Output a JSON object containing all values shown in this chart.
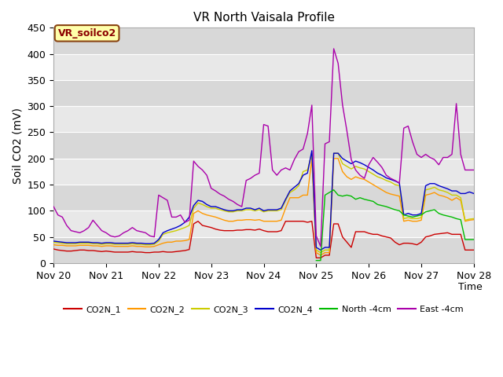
{
  "title": "VR North Vaisala Profile",
  "ylabel": "Soil CO2 (mV)",
  "xlabel": "Time",
  "annotation": "VR_soilco2",
  "ylim": [
    0,
    450
  ],
  "background_color": "#ffffff",
  "plot_bg_color": "#e8e8e8",
  "grid_color": "#ffffff",
  "band_color": "#d8d8d8",
  "series": {
    "CO2N_1": {
      "color": "#cc0000",
      "label": "CO2N_1"
    },
    "CO2N_2": {
      "color": "#ff9900",
      "label": "CO2N_2"
    },
    "CO2N_3": {
      "color": "#cccc00",
      "label": "CO2N_3"
    },
    "CO2N_4": {
      "color": "#0000cc",
      "label": "CO2N_4"
    },
    "North_4cm": {
      "color": "#00bb00",
      "label": "North -4cm"
    },
    "East_4cm": {
      "color": "#aa00aa",
      "label": "East -4cm"
    }
  },
  "xtick_labels": [
    "Nov 20",
    "Nov 21",
    "Nov 22",
    "Nov 23",
    "Nov 24",
    "Nov 25",
    "Nov 26",
    "Nov 27",
    "Nov 28"
  ],
  "xtick_positions": [
    0,
    24,
    48,
    72,
    96,
    120,
    144,
    168,
    192
  ],
  "ytick_values": [
    0,
    50,
    100,
    150,
    200,
    250,
    300,
    350,
    400,
    450
  ],
  "time_points": [
    0,
    2,
    4,
    6,
    8,
    10,
    12,
    14,
    16,
    18,
    20,
    22,
    24,
    26,
    28,
    30,
    32,
    34,
    36,
    38,
    40,
    42,
    44,
    46,
    48,
    50,
    52,
    54,
    56,
    58,
    60,
    62,
    64,
    66,
    68,
    70,
    72,
    74,
    76,
    78,
    80,
    82,
    84,
    86,
    88,
    90,
    92,
    94,
    96,
    98,
    100,
    102,
    104,
    106,
    108,
    110,
    112,
    114,
    116,
    118,
    120,
    122,
    124,
    126,
    128,
    130,
    132,
    134,
    136,
    138,
    140,
    142,
    144,
    146,
    148,
    150,
    152,
    154,
    156,
    158,
    160,
    162,
    164,
    166,
    168,
    170,
    172,
    174,
    176,
    178,
    180,
    182,
    184,
    186,
    188,
    190,
    192
  ],
  "CO2N_1": [
    27,
    25,
    24,
    23,
    23,
    24,
    25,
    25,
    24,
    24,
    23,
    22,
    23,
    22,
    21,
    21,
    21,
    21,
    22,
    21,
    21,
    20,
    20,
    21,
    21,
    22,
    21,
    21,
    22,
    23,
    24,
    26,
    75,
    80,
    72,
    70,
    68,
    65,
    63,
    62,
    62,
    62,
    63,
    63,
    64,
    64,
    63,
    65,
    62,
    60,
    60,
    60,
    62,
    80,
    80,
    80,
    80,
    80,
    78,
    80,
    10,
    10,
    15,
    15,
    75,
    75,
    50,
    40,
    30,
    60,
    60,
    60,
    57,
    55,
    55,
    52,
    50,
    48,
    40,
    35,
    38,
    38,
    37,
    35,
    40,
    50,
    52,
    55,
    56,
    57,
    58,
    55,
    55,
    55,
    25,
    25,
    25
  ],
  "CO2N_2": [
    35,
    34,
    34,
    33,
    33,
    33,
    34,
    34,
    34,
    33,
    33,
    32,
    33,
    33,
    32,
    32,
    32,
    32,
    33,
    32,
    32,
    31,
    31,
    32,
    35,
    38,
    40,
    40,
    42,
    42,
    43,
    45,
    95,
    100,
    95,
    92,
    90,
    88,
    85,
    82,
    80,
    80,
    82,
    82,
    83,
    83,
    82,
    83,
    80,
    80,
    80,
    80,
    82,
    105,
    125,
    125,
    125,
    130,
    130,
    200,
    20,
    15,
    20,
    20,
    200,
    200,
    175,
    165,
    160,
    165,
    162,
    160,
    155,
    150,
    145,
    140,
    135,
    132,
    130,
    128,
    80,
    82,
    80,
    80,
    82,
    130,
    132,
    135,
    130,
    128,
    125,
    120,
    125,
    120,
    80,
    82,
    83
  ],
  "CO2N_3": [
    40,
    39,
    38,
    37,
    37,
    37,
    38,
    38,
    38,
    37,
    37,
    36,
    37,
    37,
    36,
    36,
    36,
    36,
    37,
    36,
    36,
    35,
    35,
    36,
    42,
    55,
    58,
    60,
    62,
    65,
    68,
    72,
    105,
    115,
    112,
    108,
    105,
    105,
    102,
    100,
    98,
    98,
    100,
    100,
    102,
    102,
    100,
    102,
    98,
    100,
    100,
    100,
    102,
    120,
    135,
    140,
    148,
    175,
    178,
    210,
    25,
    20,
    25,
    25,
    210,
    210,
    190,
    185,
    180,
    185,
    182,
    180,
    175,
    170,
    165,
    162,
    158,
    155,
    150,
    148,
    85,
    87,
    85,
    85,
    87,
    140,
    142,
    145,
    140,
    138,
    135,
    130,
    130,
    125,
    82,
    84,
    85
  ],
  "CO2N_4": [
    42,
    41,
    40,
    39,
    39,
    39,
    40,
    40,
    40,
    39,
    39,
    38,
    39,
    39,
    38,
    38,
    38,
    38,
    39,
    38,
    38,
    37,
    37,
    38,
    45,
    58,
    62,
    65,
    68,
    72,
    78,
    88,
    110,
    120,
    118,
    112,
    108,
    108,
    105,
    102,
    100,
    100,
    102,
    102,
    105,
    105,
    102,
    105,
    100,
    102,
    102,
    102,
    105,
    122,
    138,
    145,
    152,
    168,
    172,
    215,
    30,
    25,
    30,
    30,
    210,
    210,
    200,
    195,
    190,
    195,
    192,
    188,
    183,
    178,
    172,
    168,
    163,
    160,
    157,
    153,
    92,
    95,
    92,
    92,
    95,
    148,
    152,
    152,
    148,
    145,
    142,
    138,
    138,
    133,
    133,
    136,
    133
  ],
  "North_4cm": [
    null,
    null,
    null,
    null,
    null,
    null,
    null,
    null,
    null,
    null,
    null,
    null,
    null,
    null,
    null,
    null,
    null,
    null,
    null,
    null,
    null,
    null,
    null,
    null,
    null,
    null,
    null,
    null,
    null,
    null,
    null,
    null,
    null,
    null,
    null,
    null,
    null,
    null,
    null,
    null,
    null,
    null,
    null,
    null,
    null,
    null,
    null,
    null,
    null,
    null,
    null,
    null,
    null,
    null,
    null,
    null,
    null,
    null,
    null,
    null,
    5,
    5,
    130,
    135,
    140,
    130,
    128,
    130,
    128,
    122,
    125,
    122,
    120,
    118,
    112,
    110,
    108,
    105,
    102,
    100,
    92,
    90,
    88,
    90,
    92,
    98,
    100,
    102,
    95,
    92,
    90,
    88,
    85,
    83,
    45,
    45,
    45
  ],
  "East_4cm": [
    108,
    92,
    88,
    72,
    62,
    60,
    58,
    62,
    68,
    82,
    72,
    62,
    58,
    52,
    50,
    52,
    58,
    62,
    68,
    62,
    60,
    58,
    52,
    50,
    130,
    125,
    120,
    88,
    88,
    92,
    78,
    82,
    195,
    185,
    178,
    168,
    143,
    138,
    132,
    128,
    122,
    118,
    112,
    108,
    158,
    162,
    168,
    172,
    265,
    262,
    178,
    168,
    178,
    182,
    178,
    198,
    213,
    218,
    248,
    302,
    52,
    32,
    228,
    232,
    410,
    382,
    303,
    253,
    198,
    178,
    168,
    162,
    188,
    202,
    193,
    183,
    168,
    162,
    158,
    153,
    258,
    262,
    232,
    208,
    202,
    208,
    202,
    198,
    188,
    202,
    202,
    208,
    305,
    208,
    178,
    178,
    178
  ]
}
